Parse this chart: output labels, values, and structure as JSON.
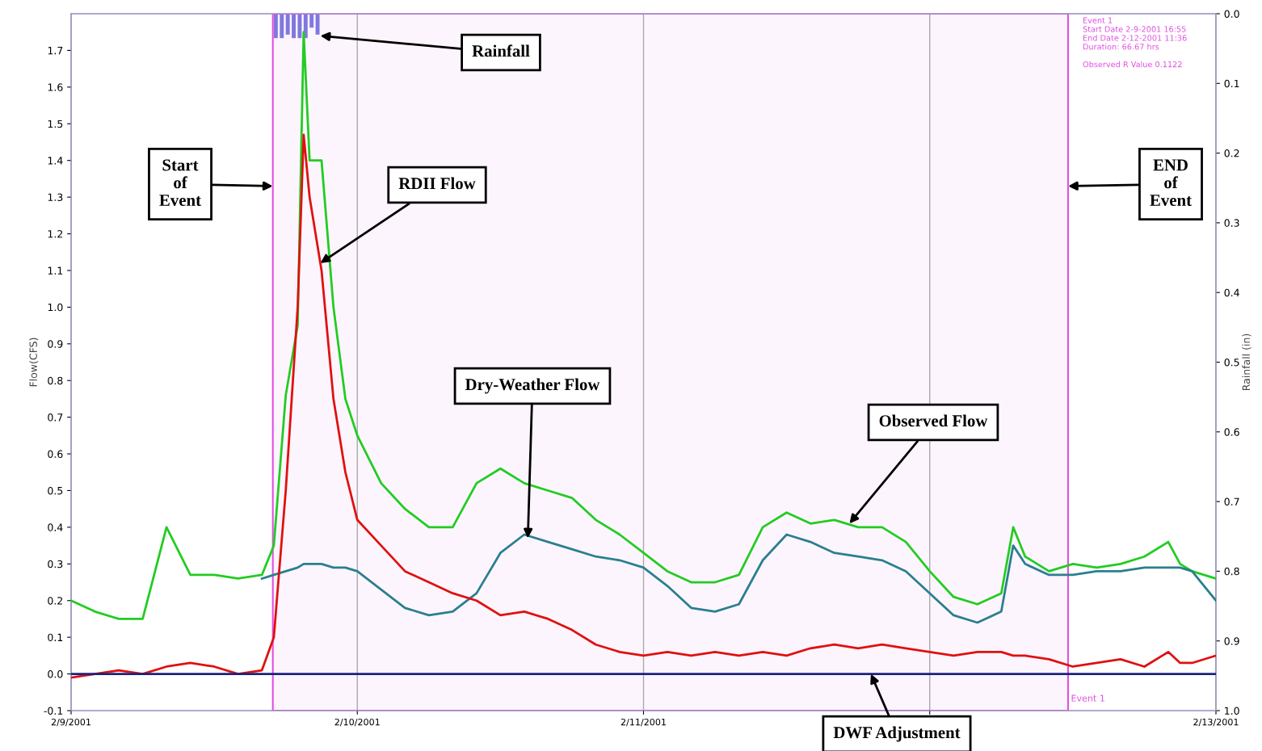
{
  "chart_data": {
    "type": "line",
    "ylabel": "Flow(CFS)",
    "y2label": "Rainfall (in)",
    "x": [
      "2001-02-09T00:00",
      "2001-02-09T02:00",
      "2001-02-09T04:00",
      "2001-02-09T06:00",
      "2001-02-09T08:00",
      "2001-02-09T10:00",
      "2001-02-09T12:00",
      "2001-02-09T14:00",
      "2001-02-09T16:00",
      "2001-02-09T17:00",
      "2001-02-09T18:00",
      "2001-02-09T19:00",
      "2001-02-09T19:30",
      "2001-02-09T20:00",
      "2001-02-09T21:00",
      "2001-02-09T22:00",
      "2001-02-09T23:00",
      "2001-02-10T00:00",
      "2001-02-10T02:00",
      "2001-02-10T04:00",
      "2001-02-10T06:00",
      "2001-02-10T08:00",
      "2001-02-10T10:00",
      "2001-02-10T12:00",
      "2001-02-10T14:00",
      "2001-02-10T16:00",
      "2001-02-10T18:00",
      "2001-02-10T20:00",
      "2001-02-10T22:00",
      "2001-02-11T00:00",
      "2001-02-11T02:00",
      "2001-02-11T04:00",
      "2001-02-11T06:00",
      "2001-02-11T08:00",
      "2001-02-11T10:00",
      "2001-02-11T12:00",
      "2001-02-11T14:00",
      "2001-02-11T16:00",
      "2001-02-11T18:00",
      "2001-02-11T20:00",
      "2001-02-11T22:00",
      "2001-02-12T00:00",
      "2001-02-12T02:00",
      "2001-02-12T04:00",
      "2001-02-12T06:00",
      "2001-02-12T07:00",
      "2001-02-12T08:00",
      "2001-02-12T10:00",
      "2001-02-12T12:00",
      "2001-02-12T14:00",
      "2001-02-12T16:00",
      "2001-02-12T18:00",
      "2001-02-12T20:00",
      "2001-02-12T21:00",
      "2001-02-12T22:00",
      "2001-02-13T00:00"
    ],
    "series": [
      {
        "color": "#22cc22",
        "values": [
          0.2,
          0.17,
          0.15,
          0.15,
          0.4,
          0.27,
          0.27,
          0.26,
          0.27,
          0.35,
          0.76,
          0.95,
          1.75,
          1.4,
          1.4,
          1.0,
          0.75,
          0.65,
          0.52,
          0.45,
          0.4,
          0.4,
          0.52,
          0.56,
          0.52,
          0.5,
          0.48,
          0.42,
          0.38,
          0.33,
          0.28,
          0.25,
          0.25,
          0.27,
          0.4,
          0.44,
          0.41,
          0.42,
          0.4,
          0.4,
          0.36,
          0.28,
          0.21,
          0.19,
          0.22,
          0.4,
          0.32,
          0.28,
          0.3,
          0.29,
          0.3,
          0.32,
          0.36,
          0.3,
          0.28,
          0.26
        ]
      },
      {
        "color": "#2a7f8f",
        "values": [
          null,
          null,
          null,
          null,
          null,
          null,
          null,
          null,
          0.26,
          0.27,
          0.28,
          0.29,
          0.3,
          0.3,
          0.3,
          0.29,
          0.29,
          0.28,
          0.23,
          0.18,
          0.16,
          0.17,
          0.22,
          0.33,
          0.38,
          0.36,
          0.34,
          0.32,
          0.31,
          0.29,
          0.24,
          0.18,
          0.17,
          0.19,
          0.31,
          0.38,
          0.36,
          0.33,
          0.32,
          0.31,
          0.28,
          0.22,
          0.16,
          0.14,
          0.17,
          0.35,
          0.3,
          0.27,
          0.27,
          0.28,
          0.28,
          0.29,
          0.29,
          0.29,
          0.28,
          0.2
        ]
      },
      {
        "color": "#e01010",
        "values": [
          -0.01,
          0.0,
          0.01,
          0.0,
          0.02,
          0.03,
          0.02,
          0.0,
          0.01,
          0.1,
          0.5,
          1.0,
          1.47,
          1.3,
          1.1,
          0.75,
          0.55,
          0.42,
          0.35,
          0.28,
          0.25,
          0.22,
          0.2,
          0.16,
          0.17,
          0.15,
          0.12,
          0.08,
          0.06,
          0.05,
          0.06,
          0.05,
          0.06,
          0.05,
          0.06,
          0.05,
          0.07,
          0.08,
          0.07,
          0.08,
          0.07,
          0.06,
          0.05,
          0.06,
          0.06,
          0.05,
          0.05,
          0.04,
          0.02,
          0.03,
          0.04,
          0.02,
          0.06,
          0.03,
          0.03,
          0.05
        ]
      },
      {
        "color": "#1a237e",
        "x": [
          "2001-02-09T00:00",
          "2001-02-13T00:00"
        ],
        "values": [
          0.0,
          0.0
        ]
      },
      {
        "type": "bar",
        "axis": "y2",
        "color": "#7b7be0",
        "x": [
          "2001-02-09T17:00",
          "2001-02-09T17:30",
          "2001-02-09T18:00",
          "2001-02-09T18:30",
          "2001-02-09T19:00",
          "2001-02-09T19:30",
          "2001-02-09T20:00",
          "2001-02-09T20:30"
        ],
        "values": [
          0.035,
          0.035,
          0.03,
          0.035,
          0.035,
          0.035,
          0.02,
          0.03
        ]
      }
    ],
    "xlim": [
      "2001-02-09T00:00",
      "2001-02-13T00:00"
    ],
    "xticks": [
      {
        "value": "2001-02-09",
        "label": "2/9/2001"
      },
      {
        "value": "2001-02-10",
        "label": "2/10/2001"
      },
      {
        "value": "2001-02-11",
        "label": "2/11/2001"
      },
      {
        "value": "2001-02-12",
        "label": null
      },
      {
        "value": "2001-02-13",
        "label": "2/13/2001"
      }
    ],
    "ylim": [
      -0.1,
      1.8
    ],
    "yticks": [
      -0.1,
      {
        "value": 0,
        "label": "0.0"
      },
      0.1,
      0.2,
      0.3,
      0.4,
      0.5,
      0.6,
      0.7,
      0.8,
      0.9,
      {
        "value": 1,
        "label": "1.0"
      },
      1.1,
      1.2,
      1.3,
      1.4,
      1.5,
      1.6,
      1.7
    ],
    "y2lim": [
      1.0,
      0.0
    ],
    "y2ticks": [
      {
        "value": 0,
        "label": "0.0"
      },
      0.1,
      0.2,
      0.3,
      0.4,
      0.5,
      0.6,
      0.7,
      0.8,
      0.9,
      {
        "value": 1,
        "label": "1.0"
      }
    ],
    "grid": "x",
    "legend": false,
    "bands": [
      {
        "axis": "x",
        "from": "2001-02-09T16:55",
        "to": "2001-02-12T11:36",
        "label": "Event 1",
        "color": "#e050e0"
      }
    ],
    "annotations": [
      {
        "text": "Rainfall",
        "x": "2001-02-09T20:54",
        "y": 1.74
      },
      {
        "text": "Start\nof\nEvent",
        "x": "2001-02-09T16:55",
        "y": 1.33
      },
      {
        "text": "RDII Flow",
        "x": "2001-02-09T20:54",
        "y": 1.12
      },
      {
        "text": "Dry-Weather Flow",
        "x": "2001-02-10T14:18",
        "y": 0.37
      },
      {
        "text": "Observed Flow",
        "x": "2001-02-11T17:16",
        "y": 0.41
      },
      {
        "text": "DWF Adjustment",
        "x": "2001-02-11T19:04",
        "y": 0.0
      },
      {
        "text": "END\nof\nEvent",
        "x": "2001-02-12T11:36",
        "y": 1.33
      },
      "Event 1\nStart Date 2-9-2001 16:55\nEnd Date 2-12-2001 11:36\nDuration: 66.67 hrs\n\nObserved R Value 0.1122"
    ]
  }
}
